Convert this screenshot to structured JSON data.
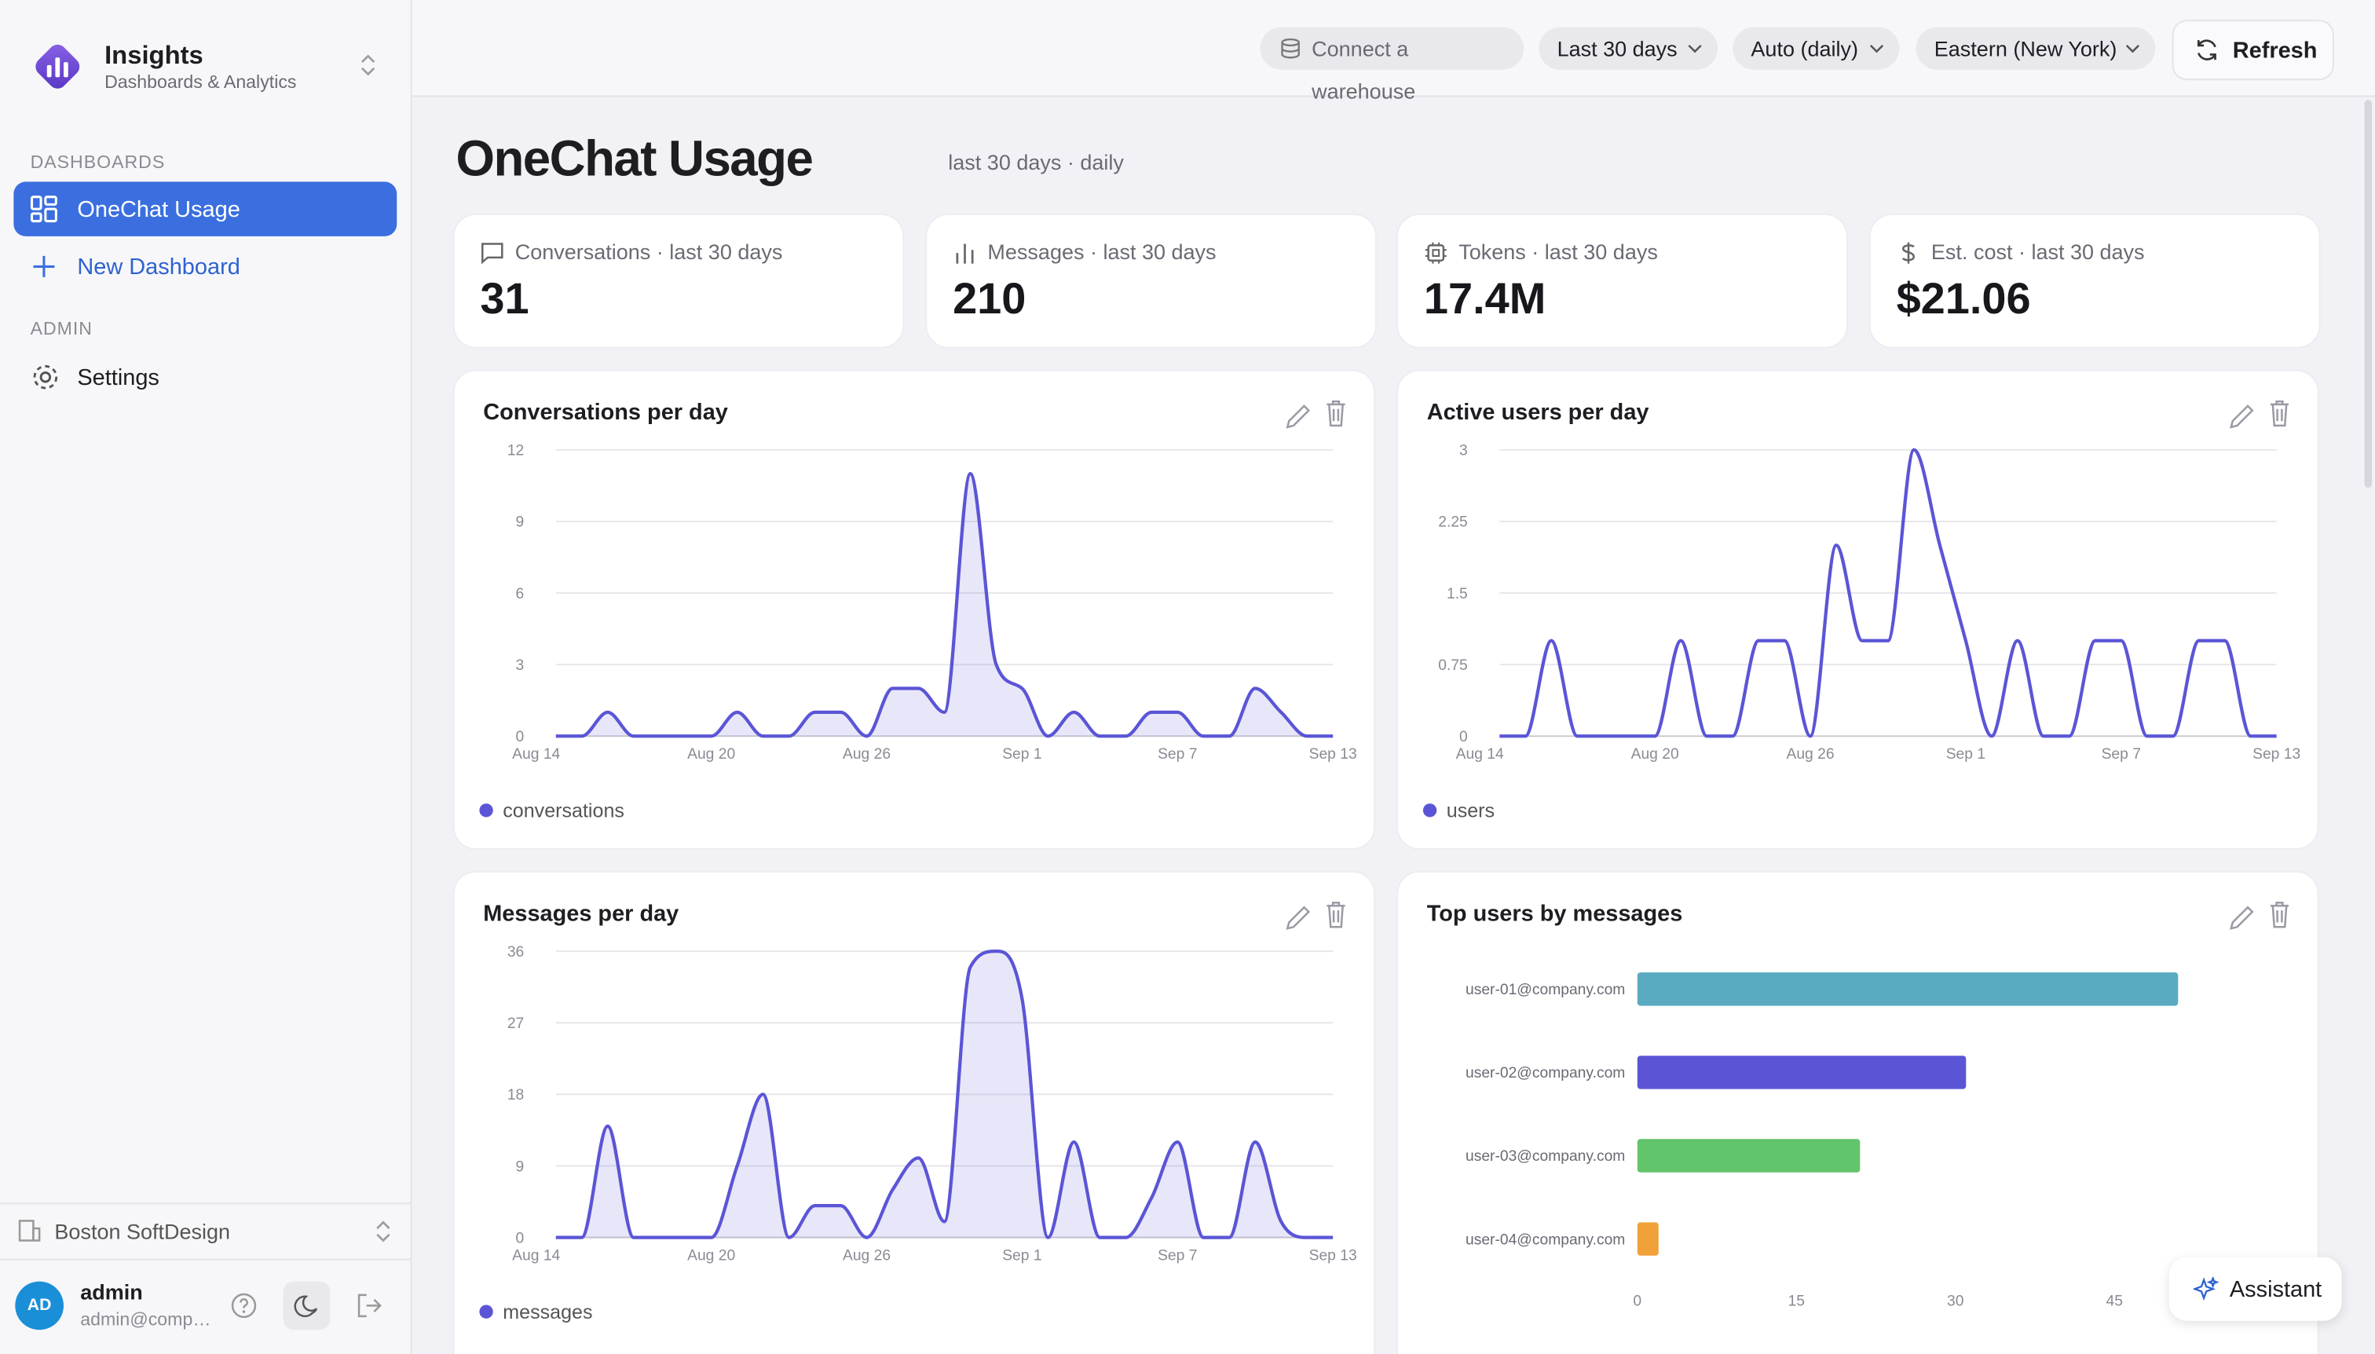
{
  "sidebar": {
    "app_name": "Insights",
    "app_subtitle": "Dashboards & Analytics",
    "sections": [
      {
        "heading": "DASHBOARDS",
        "items": [
          "OneChat Usage",
          "New Dashboard"
        ]
      },
      {
        "heading": "ADMIN",
        "items": [
          "Settings"
        ]
      }
    ],
    "org": "Boston SoftDesign",
    "user": {
      "initials": "AD",
      "name": "admin",
      "email": "admin@comp…"
    }
  },
  "toolbar": {
    "connect": "Connect a warehouse",
    "range": "Last 30 days",
    "granularity": "Auto (daily)",
    "timezone": "Eastern (New York)",
    "refresh": "Refresh"
  },
  "page": {
    "title": "OneChat Usage",
    "subtitle": "last 30 days · daily"
  },
  "kpis": [
    {
      "label": "Conversations · last 30 days",
      "value": "31"
    },
    {
      "label": "Messages · last 30 days",
      "value": "210"
    },
    {
      "label": "Tokens · last 30 days",
      "value": "17.4M"
    },
    {
      "label": "Est. cost · last 30 days",
      "value": "$21.06"
    }
  ],
  "chart_data": [
    {
      "type": "line",
      "title": "Conversations per day",
      "categories": [
        "Aug 14",
        null,
        null,
        null,
        null,
        null,
        "Aug 20",
        null,
        null,
        null,
        null,
        null,
        "Aug 26",
        null,
        null,
        null,
        null,
        null,
        "Sep 1",
        null,
        null,
        null,
        null,
        null,
        "Sep 7",
        null,
        null,
        null,
        null,
        null,
        "Sep 13"
      ],
      "series": [
        {
          "name": "conversations",
          "color": "#5b55d6",
          "values": [
            0,
            0,
            1,
            0,
            0,
            0,
            0,
            1,
            0,
            0,
            1,
            1,
            0,
            2,
            2,
            1,
            11,
            3,
            2,
            0,
            1,
            0,
            0,
            1,
            1,
            0,
            0,
            2,
            1,
            0,
            0
          ]
        }
      ],
      "ylim": [
        0,
        12
      ],
      "yticks": [
        0,
        3,
        6,
        9,
        12
      ],
      "grid": true,
      "area": true,
      "legend": "bottom-left"
    },
    {
      "type": "line",
      "title": "Active users per day",
      "categories": [
        "Aug 14",
        null,
        null,
        null,
        null,
        null,
        "Aug 20",
        null,
        null,
        null,
        null,
        null,
        "Aug 26",
        null,
        null,
        null,
        null,
        null,
        "Sep 1",
        null,
        null,
        null,
        null,
        null,
        "Sep 7",
        null,
        null,
        null,
        null,
        null,
        "Sep 13"
      ],
      "series": [
        {
          "name": "users",
          "color": "#5b55d6",
          "values": [
            0,
            0,
            1,
            0,
            0,
            0,
            0,
            1,
            0,
            0,
            1,
            1,
            0,
            2,
            1,
            1,
            3,
            2,
            1,
            0,
            1,
            0,
            0,
            1,
            1,
            0,
            0,
            1,
            1,
            0,
            0
          ]
        }
      ],
      "ylim": [
        0,
        3
      ],
      "yticks": [
        0,
        0.75,
        1.5,
        2.25,
        3
      ],
      "grid": true,
      "area": false,
      "legend": "bottom-left"
    },
    {
      "type": "line",
      "title": "Messages per day",
      "categories": [
        "Aug 14",
        null,
        null,
        null,
        null,
        null,
        "Aug 20",
        null,
        null,
        null,
        null,
        null,
        "Aug 26",
        null,
        null,
        null,
        null,
        null,
        "Sep 1",
        null,
        null,
        null,
        null,
        null,
        "Sep 7",
        null,
        null,
        null,
        null,
        null,
        "Sep 13"
      ],
      "series": [
        {
          "name": "messages",
          "color": "#5b55d6",
          "values": [
            0,
            0,
            14,
            0,
            0,
            0,
            0,
            9,
            18,
            0,
            4,
            4,
            0,
            6,
            10,
            2,
            34,
            36,
            30,
            0,
            12,
            0,
            0,
            5,
            12,
            0,
            0,
            12,
            2,
            0,
            0
          ]
        }
      ],
      "ylim": [
        0,
        36
      ],
      "yticks": [
        0,
        9,
        18,
        27,
        36
      ],
      "grid": true,
      "area": true,
      "legend": "bottom-left"
    },
    {
      "type": "hbar",
      "title": "Top users by messages",
      "categories": [
        "user-01@company.com",
        "user-02@company.com",
        "user-03@company.com",
        "user-04@company.com"
      ],
      "values": [
        51,
        31,
        21,
        2
      ],
      "colors": [
        "#5aabc2",
        "#5b55d6",
        "#62c46b",
        "#f0a13a"
      ],
      "xlim": [
        0,
        60
      ],
      "xticks": [
        0,
        15,
        30,
        45
      ],
      "grid": false
    }
  ],
  "assistant": "Assistant"
}
